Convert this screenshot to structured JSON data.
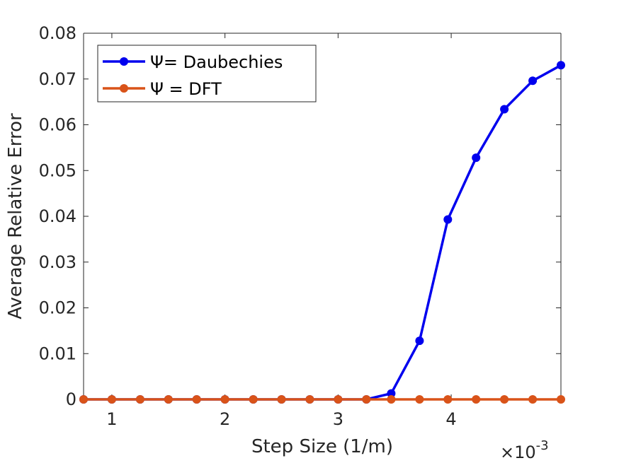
{
  "chart_data": {
    "type": "line",
    "title": "",
    "xlabel": "Step Size (1/m)",
    "ylabel": "Average Relative Error",
    "x_multiplier_label": "×10",
    "x_multiplier_exponent": "-3",
    "xlim": [
      0.75,
      4.97
    ],
    "ylim": [
      0,
      0.08
    ],
    "xticks": [
      1,
      2,
      3,
      4
    ],
    "xtick_labels": [
      "1",
      "2",
      "3",
      "4"
    ],
    "yticks": [
      0,
      0.01,
      0.02,
      0.03,
      0.04,
      0.05,
      0.06,
      0.07,
      0.08
    ],
    "ytick_labels": [
      "0",
      "0.01",
      "0.02",
      "0.03",
      "0.04",
      "0.05",
      "0.06",
      "0.07",
      "0.08"
    ],
    "grid": false,
    "legend_position": "top-left",
    "x": [
      0.75,
      1.0,
      1.25,
      1.5,
      1.75,
      2.0,
      2.25,
      2.5,
      2.75,
      3.0,
      3.25,
      3.47,
      3.72,
      3.97,
      4.22,
      4.47,
      4.72,
      4.97
    ],
    "series": [
      {
        "name": "Ψ= Daubechies",
        "color": "#0000ee",
        "values": [
          0,
          0,
          0,
          0,
          0,
          0,
          0,
          0,
          0,
          0,
          0,
          0.0013,
          0.0128,
          0.0393,
          0.0528,
          0.0634,
          0.0696,
          0.073
        ]
      },
      {
        "name": "Ψ = DFT",
        "color": "#d95319",
        "values": [
          0,
          0,
          0,
          0,
          0,
          0,
          0,
          0,
          0,
          0,
          0,
          0,
          0,
          0,
          0,
          0,
          0,
          0
        ]
      }
    ]
  }
}
